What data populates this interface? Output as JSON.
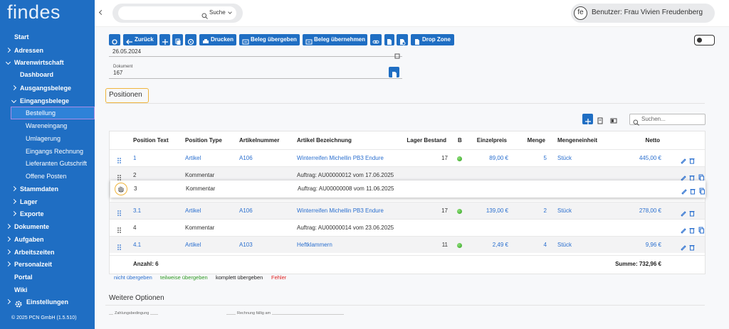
{
  "sidebar": {
    "logo": "findes",
    "nav": [
      "Start",
      "Adressen",
      "Warenwirtschaft",
      "Dashboard",
      "Ausgangsbelege",
      "Eingangsbelege",
      "Bestellung",
      "Wareneingang",
      "Umlagerung",
      "Eingangs Rechnung",
      "Lieferanten Gutschrift",
      "Offene Posten",
      "Stammdaten",
      "Lager",
      "Exporte",
      "Dokumente",
      "Aufgaben",
      "Arbeitszeiten",
      "Personalzeit",
      "Portal",
      "Wiki",
      "Einstellungen"
    ],
    "footer": "© 2025 PCN GmbH (1.5.510)"
  },
  "topbar": {
    "search": "Suche",
    "avatar": "fe",
    "user": "Benutzer: Frau Vivien Freudenberg"
  },
  "toolbar": {
    "buttons": [
      "Zurück",
      "Drucken",
      "Beleg übergeben",
      "Beleg übernehmen",
      "Drop Zone"
    ]
  },
  "form": {
    "date": "26.05.2024",
    "dokument_label": "Dokument",
    "dokument": "167"
  },
  "positionen": {
    "title": "Positionen",
    "search_placeholder": "Suchen...",
    "headers": [
      "Position Text",
      "Position Type",
      "Artikelnummer",
      "Artikel Bezeichnung",
      "Lager Bestand",
      "B",
      "Einzelpreis",
      "Menge",
      "Mengeneinheit",
      "Netto"
    ],
    "rows": [
      {
        "position": "1",
        "type": "Artikel",
        "artikelnummer": "A106",
        "bezeichnung": "Winterreifen Michellin PB3 Endure",
        "lager": "17",
        "einzelpreis": "89,00 €",
        "menge": "5",
        "einheit": "Stück",
        "netto": "445,00 €"
      },
      {
        "position": "2",
        "type": "Kommentar",
        "bezeichnung": "Auftrag: AU00000012 vom 17.06.2025"
      },
      {
        "position": "3",
        "type": "Kommentar",
        "bezeichnung": "Auftrag: AU00000008 vom 11.06.2025"
      },
      {
        "position": "3.1",
        "type": "Artikel",
        "artikelnummer": "A106",
        "bezeichnung": "Winterreifen Michellin PB3 Endure",
        "lager": "17",
        "einzelpreis": "139,00 €",
        "menge": "2",
        "einheit": "Stück",
        "netto": "278,00 €"
      },
      {
        "position": "4",
        "type": "Kommentar",
        "bezeichnung": "Auftrag: AU00000014 vom 23.06.2025"
      },
      {
        "position": "4.1",
        "type": "Artikel",
        "artikelnummer": "A103",
        "bezeichnung": "Heftklammern",
        "lager": "11",
        "einzelpreis": "2,49 €",
        "menge": "4",
        "einheit": "Stück",
        "netto": "9,96 €"
      }
    ],
    "count": "Anzahl: 6",
    "sum": "Summe: 732,96 €"
  },
  "legend": [
    "nicht übergeben",
    "teilweise übergeben",
    "komplett übergeben",
    "Fehler"
  ],
  "weitere_optionen": {
    "title": "Weitere Optionen",
    "fields": [
      "Zahlungsbedingung",
      "Rechnung fällig am"
    ]
  }
}
